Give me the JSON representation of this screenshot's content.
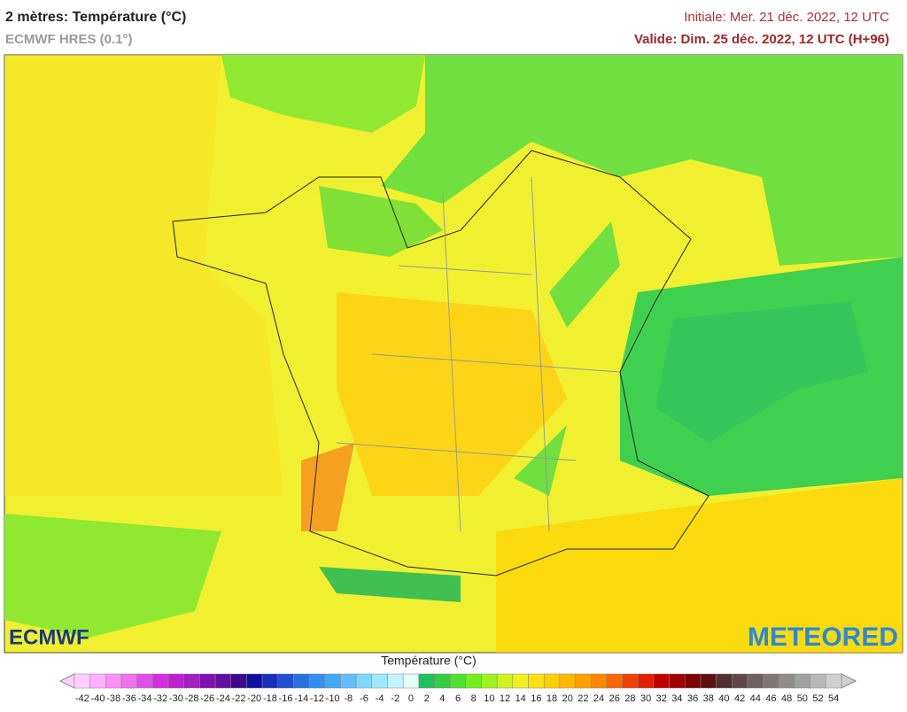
{
  "header": {
    "title": "2 mètres: Température (°C)",
    "subtitle": "ECMWF HRES (0.1°)",
    "initial": "Initiale: Mer. 21 déc. 2022, 12 UTC",
    "valid": "Valide: Dim. 25 déc. 2022, 12 UTC (H+96)"
  },
  "logos": {
    "left": "ECMWF",
    "right": "METEORED"
  },
  "legend": {
    "title": "Température (°C)",
    "ticks": [
      -42,
      -40,
      -38,
      -36,
      -34,
      -32,
      -30,
      -28,
      -26,
      -24,
      -22,
      -20,
      -18,
      -16,
      -14,
      -12,
      -10,
      -8,
      -6,
      -4,
      -2,
      0,
      2,
      4,
      6,
      8,
      10,
      12,
      14,
      16,
      18,
      20,
      22,
      24,
      26,
      28,
      30,
      32,
      34,
      36,
      38,
      40,
      42,
      44,
      46,
      48,
      50,
      52,
      54
    ],
    "colors": [
      "#ffd0ff",
      "#ffb0ff",
      "#f890f8",
      "#f070f0",
      "#e050e8",
      "#d030e0",
      "#c020d0",
      "#a020c0",
      "#8010b0",
      "#6010a0",
      "#400890",
      "#1010a0",
      "#1830b8",
      "#2050d0",
      "#2870e0",
      "#3090f0",
      "#40a8f8",
      "#60c0ff",
      "#80d8ff",
      "#a0e8ff",
      "#c0f4ff",
      "#e0fff8",
      "#20c060",
      "#30d040",
      "#50e030",
      "#70f020",
      "#a0f020",
      "#d0f020",
      "#f0f020",
      "#ffe010",
      "#ffd000",
      "#ffb800",
      "#ffa000",
      "#ff8800",
      "#ff6600",
      "#f04000",
      "#e02000",
      "#c00000",
      "#a00000",
      "#800000",
      "#601010",
      "#503030",
      "#604848",
      "#706060",
      "#807878",
      "#908c8c",
      "#a0a0a0",
      "#b8b8b8",
      "#d0d0d0"
    ]
  }
}
